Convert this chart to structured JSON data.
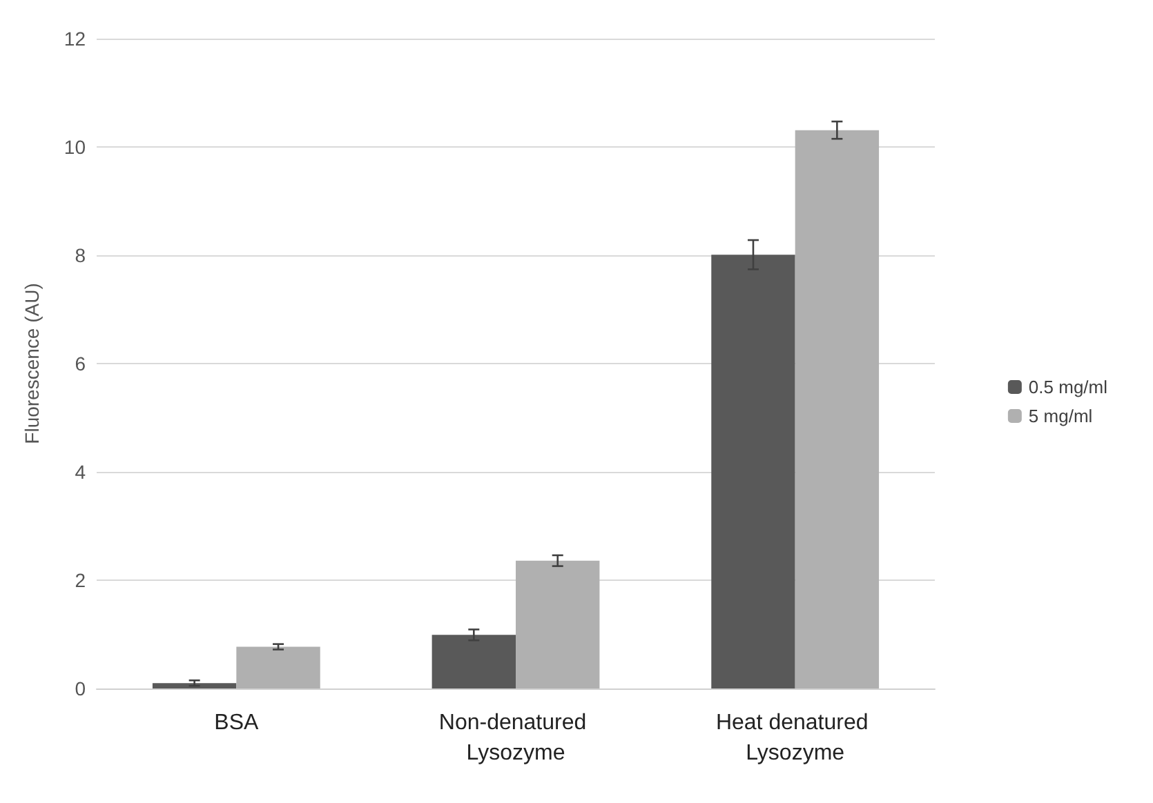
{
  "chart_data": {
    "type": "bar",
    "ylabel": "Fluorescence (AU)",
    "categories": [
      "BSA",
      "Non-denatured Lysozyme",
      "Heat denatured Lysozyme"
    ],
    "series": [
      {
        "name": "0.5 mg/ml",
        "color": "#595959",
        "values": [
          0.1,
          0.99,
          8.01
        ],
        "errors": [
          0.05,
          0.1,
          0.27
        ]
      },
      {
        "name": "5 mg/ml",
        "color": "#b0b0b0",
        "values": [
          0.77,
          2.36,
          10.31
        ],
        "errors": [
          0.05,
          0.1,
          0.16
        ]
      }
    ],
    "ylim": [
      0,
      12
    ],
    "yticks": [
      0,
      2,
      4,
      6,
      8,
      10,
      12
    ],
    "grid": "y",
    "legend": "right"
  }
}
